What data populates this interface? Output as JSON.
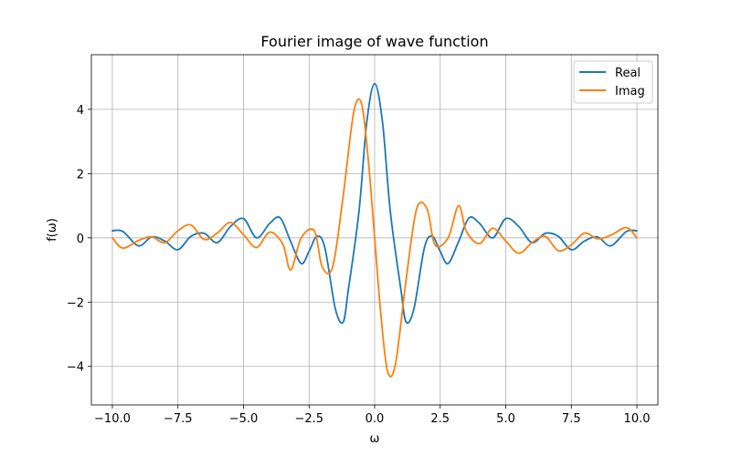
{
  "chart_data": {
    "type": "line",
    "title": "Fourier image of wave function",
    "xlabel": "ω",
    "ylabel": "f(ω)",
    "xlim": [
      -10.8,
      10.8
    ],
    "ylim": [
      -5.2,
      5.7
    ],
    "xticks": [
      -10.0,
      -7.5,
      -5.0,
      -2.5,
      0.0,
      2.5,
      5.0,
      7.5,
      10.0
    ],
    "xtick_labels": [
      "−10.0",
      "−7.5",
      "−5.0",
      "−2.5",
      "0.0",
      "2.5",
      "5.0",
      "7.5",
      "10.0"
    ],
    "yticks": [
      -4,
      -2,
      0,
      2,
      4
    ],
    "ytick_labels": [
      "−4",
      "−2",
      "0",
      "2",
      "4"
    ],
    "grid": true,
    "legend_position": "top-right",
    "series": [
      {
        "name": "Real",
        "color": "#1f77b4",
        "x": [
          -10.0,
          -9.6,
          -9.0,
          -8.5,
          -8.0,
          -7.5,
          -7.0,
          -6.5,
          -6.0,
          -5.5,
          -5.0,
          -4.5,
          -4.0,
          -3.6,
          -3.2,
          -2.8,
          -2.5,
          -2.2,
          -1.9,
          -1.5,
          -1.2,
          -1.0,
          -0.6,
          -0.3,
          0.0,
          0.3,
          0.6,
          1.0,
          1.2,
          1.5,
          1.9,
          2.2,
          2.5,
          2.8,
          3.2,
          3.6,
          4.0,
          4.5,
          5.0,
          5.5,
          6.0,
          6.5,
          7.0,
          7.5,
          8.0,
          8.5,
          9.0,
          9.6,
          10.0
        ],
        "y": [
          0.22,
          0.2,
          -0.25,
          0.03,
          -0.1,
          -0.37,
          0.05,
          0.14,
          -0.15,
          0.35,
          0.6,
          0.0,
          0.45,
          0.62,
          -0.12,
          -0.8,
          -0.42,
          0.05,
          -0.3,
          -2.2,
          -2.62,
          -1.6,
          0.8,
          3.6,
          4.8,
          3.6,
          0.8,
          -1.6,
          -2.62,
          -2.2,
          -0.3,
          0.05,
          -0.42,
          -0.8,
          -0.12,
          0.62,
          0.45,
          0.0,
          0.6,
          0.35,
          -0.15,
          0.14,
          0.05,
          -0.37,
          -0.1,
          0.03,
          -0.25,
          0.2,
          0.22
        ]
      },
      {
        "name": "Imag",
        "color": "#ff7f0e",
        "x": [
          -10.0,
          -9.6,
          -9.0,
          -8.5,
          -8.0,
          -7.5,
          -7.0,
          -6.5,
          -6.0,
          -5.5,
          -5.0,
          -4.5,
          -4.0,
          -3.5,
          -3.2,
          -2.8,
          -2.3,
          -2.0,
          -1.6,
          -1.2,
          -0.8,
          -0.5,
          -0.25,
          0.0,
          0.25,
          0.5,
          0.8,
          1.2,
          1.6,
          2.0,
          2.3,
          2.8,
          3.2,
          3.5,
          4.0,
          4.5,
          5.0,
          5.5,
          6.0,
          6.5,
          7.0,
          7.5,
          8.0,
          8.5,
          9.0,
          9.6,
          10.0
        ],
        "y": [
          0.0,
          -0.32,
          -0.08,
          0.03,
          -0.15,
          0.22,
          0.4,
          -0.05,
          0.15,
          0.48,
          0.1,
          -0.3,
          0.18,
          -0.2,
          -1.0,
          0.0,
          0.22,
          -0.9,
          -0.9,
          1.3,
          3.9,
          4.18,
          2.5,
          0.0,
          -2.5,
          -4.18,
          -3.9,
          -1.3,
          0.9,
          0.9,
          -0.22,
          0.0,
          1.0,
          0.2,
          -0.18,
          0.3,
          -0.1,
          -0.48,
          -0.15,
          0.05,
          -0.4,
          -0.22,
          0.15,
          -0.03,
          0.08,
          0.32,
          0.0
        ]
      }
    ]
  }
}
